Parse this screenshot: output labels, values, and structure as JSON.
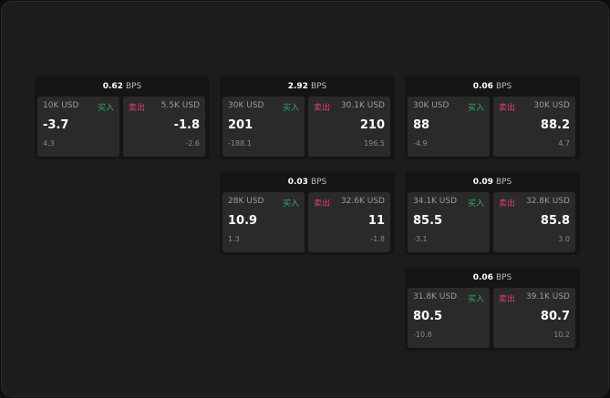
{
  "unit": "BPS",
  "buy_label": "买入",
  "sell_label": "卖出",
  "colors": {
    "buy": "#2fae60",
    "sell": "#e0406a"
  },
  "cards": [
    {
      "spread": "0.62",
      "buy": {
        "size": "10K USD",
        "price": "-3.7",
        "change": "4.3"
      },
      "sell": {
        "size": "5.5K USD",
        "price": "-1.8",
        "change": "-2.6"
      }
    },
    {
      "spread": "2.92",
      "buy": {
        "size": "30K USD",
        "price": "201",
        "change": "-188.1"
      },
      "sell": {
        "size": "30.1K USD",
        "price": "210",
        "change": "196.5"
      }
    },
    {
      "spread": "0.06",
      "buy": {
        "size": "30K USD",
        "price": "88",
        "change": "-4.9"
      },
      "sell": {
        "size": "30K USD",
        "price": "88.2",
        "change": "4.7"
      }
    },
    {
      "spread": "0.03",
      "buy": {
        "size": "28K USD",
        "price": "10.9",
        "change": "1.3"
      },
      "sell": {
        "size": "32.6K USD",
        "price": "11",
        "change": "-1.8"
      }
    },
    {
      "spread": "0.09",
      "buy": {
        "size": "34.1K USD",
        "price": "85.5",
        "change": "-3.1"
      },
      "sell": {
        "size": "32.8K USD",
        "price": "85.8",
        "change": "3.0"
      }
    },
    {
      "spread": "0.06",
      "buy": {
        "size": "31.8K USD",
        "price": "80.5",
        "change": "-10.8"
      },
      "sell": {
        "size": "39.1K USD",
        "price": "80.7",
        "change": "10.2"
      }
    }
  ]
}
